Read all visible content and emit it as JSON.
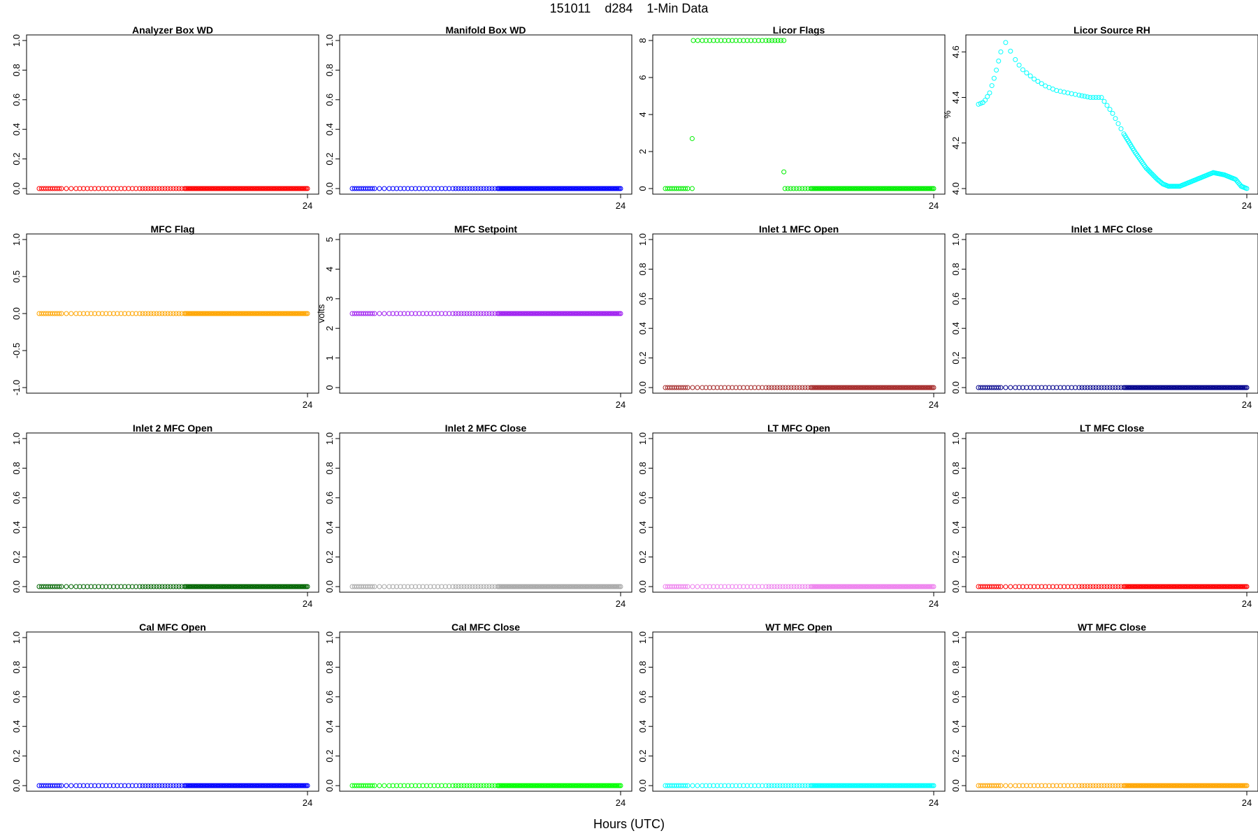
{
  "figure": {
    "title": "151011    d284    1-Min Data",
    "xlabel": "Hours (UTC)"
  },
  "chart_data": [
    {
      "type": "scatter",
      "title": "Analyzer Box WD",
      "ylabel": "",
      "color": "#ff0000",
      "ylim": [
        0,
        1
      ],
      "yticks": [
        "0.0",
        "0.2",
        "0.4",
        "0.6",
        "0.8",
        "1.0"
      ],
      "xlim": [
        0,
        24
      ],
      "xticks": [
        "24"
      ],
      "series": [
        {
          "x": [
            0,
            24
          ],
          "y": [
            0,
            0
          ],
          "pattern": "constant"
        }
      ]
    },
    {
      "type": "scatter",
      "title": "Manifold Box WD",
      "ylabel": "",
      "color": "#0000ff",
      "ylim": [
        0,
        1
      ],
      "yticks": [
        "0.0",
        "0.2",
        "0.4",
        "0.6",
        "0.8",
        "1.0"
      ],
      "xlim": [
        0,
        24
      ],
      "xticks": [
        "24"
      ],
      "series": [
        {
          "x": [
            0,
            24
          ],
          "y": [
            0,
            0
          ],
          "pattern": "constant"
        }
      ]
    },
    {
      "type": "scatter",
      "title": "Licor Flags",
      "ylabel": "",
      "color": "#00ee00",
      "ylim": [
        0,
        8
      ],
      "yticks": [
        "0",
        "2",
        "4",
        "6",
        "8"
      ],
      "xlim": [
        0,
        24
      ],
      "xticks": [
        "24"
      ],
      "series": [
        {
          "x": [
            0,
            2.4,
            2.5,
            10.6,
            10.7,
            24
          ],
          "y": [
            0,
            0,
            8,
            8,
            0,
            0
          ],
          "pattern": "steps"
        },
        {
          "x": [
            2.4,
            10.6
          ],
          "y": [
            2.7,
            0.9
          ],
          "pattern": "points"
        }
      ]
    },
    {
      "type": "scatter",
      "title": "Licor Source RH",
      "ylabel": "%",
      "color": "#00ffff",
      "ylim": [
        4,
        4.65
      ],
      "yticks": [
        "4.0",
        "4.2",
        "4.4",
        "4.6"
      ],
      "xlim": [
        0,
        24
      ],
      "xticks": [
        "24"
      ],
      "series": [
        {
          "x": [
            0,
            0.5,
            1,
            1.5,
            2,
            2.3,
            2.6,
            3,
            3.5,
            4,
            5,
            6,
            7,
            8,
            9,
            10,
            10.5,
            11,
            12,
            13,
            14,
            15,
            16,
            16.5,
            17,
            18,
            19,
            20,
            20.5,
            21,
            22,
            23,
            23.5,
            24
          ],
          "y": [
            4.37,
            4.38,
            4.42,
            4.5,
            4.6,
            4.65,
            4.63,
            4.59,
            4.55,
            4.52,
            4.48,
            4.45,
            4.43,
            4.42,
            4.41,
            4.4,
            4.4,
            4.4,
            4.33,
            4.24,
            4.16,
            4.09,
            4.04,
            4.02,
            4.01,
            4.01,
            4.03,
            4.05,
            4.06,
            4.07,
            4.06,
            4.04,
            4.01,
            4
          ]
        }
      ]
    },
    {
      "type": "scatter",
      "title": "MFC Flag",
      "ylabel": "",
      "color": "#ffa500",
      "ylim": [
        -1,
        1
      ],
      "yticks": [
        "-1.0",
        "-0.5",
        "0.0",
        "0.5",
        "1.0"
      ],
      "xlim": [
        0,
        24
      ],
      "xticks": [
        "24"
      ],
      "series": [
        {
          "x": [
            0,
            24
          ],
          "y": [
            0,
            0
          ],
          "pattern": "constant"
        }
      ]
    },
    {
      "type": "scatter",
      "title": "MFC Setpoint",
      "ylabel": "volts",
      "color": "#a020f0",
      "ylim": [
        0,
        5
      ],
      "yticks": [
        "0",
        "1",
        "2",
        "3",
        "4",
        "5"
      ],
      "xlim": [
        0,
        24
      ],
      "xticks": [
        "24"
      ],
      "series": [
        {
          "x": [
            0,
            24
          ],
          "y": [
            2.5,
            2.5
          ],
          "pattern": "constant"
        }
      ]
    },
    {
      "type": "scatter",
      "title": "Inlet 1 MFC Open",
      "ylabel": "",
      "color": "#a52a2a",
      "ylim": [
        0,
        1
      ],
      "yticks": [
        "0.0",
        "0.2",
        "0.4",
        "0.6",
        "0.8",
        "1.0"
      ],
      "xlim": [
        0,
        24
      ],
      "xticks": [
        "24"
      ],
      "series": [
        {
          "x": [
            0,
            24
          ],
          "y": [
            0,
            0
          ],
          "pattern": "constant"
        }
      ]
    },
    {
      "type": "scatter",
      "title": "Inlet 1 MFC Close",
      "ylabel": "",
      "color": "#00008b",
      "ylim": [
        0,
        1
      ],
      "yticks": [
        "0.0",
        "0.2",
        "0.4",
        "0.6",
        "0.8",
        "1.0"
      ],
      "xlim": [
        0,
        24
      ],
      "xticks": [
        "24"
      ],
      "series": [
        {
          "x": [
            0,
            24
          ],
          "y": [
            0,
            0
          ],
          "pattern": "constant"
        }
      ]
    },
    {
      "type": "scatter",
      "title": "Inlet 2 MFC Open",
      "ylabel": "",
      "color": "#006400",
      "ylim": [
        0,
        1
      ],
      "yticks": [
        "0.0",
        "0.2",
        "0.4",
        "0.6",
        "0.8",
        "1.0"
      ],
      "xlim": [
        0,
        24
      ],
      "xticks": [
        "24"
      ],
      "series": [
        {
          "x": [
            0,
            24
          ],
          "y": [
            0,
            0
          ],
          "pattern": "constant"
        }
      ]
    },
    {
      "type": "scatter",
      "title": "Inlet 2 MFC Close",
      "ylabel": "",
      "color": "#a9a9a9",
      "ylim": [
        0,
        1
      ],
      "yticks": [
        "0.0",
        "0.2",
        "0.4",
        "0.6",
        "0.8",
        "1.0"
      ],
      "xlim": [
        0,
        24
      ],
      "xticks": [
        "24"
      ],
      "series": [
        {
          "x": [
            0,
            24
          ],
          "y": [
            0,
            0
          ],
          "pattern": "constant"
        }
      ]
    },
    {
      "type": "scatter",
      "title": "LT MFC Open",
      "ylabel": "",
      "color": "#ee82ee",
      "ylim": [
        0,
        1
      ],
      "yticks": [
        "0.0",
        "0.2",
        "0.4",
        "0.6",
        "0.8",
        "1.0"
      ],
      "xlim": [
        0,
        24
      ],
      "xticks": [
        "24"
      ],
      "series": [
        {
          "x": [
            0,
            24
          ],
          "y": [
            0,
            0
          ],
          "pattern": "constant"
        }
      ]
    },
    {
      "type": "scatter",
      "title": "LT MFC Close",
      "ylabel": "",
      "color": "#ff0000",
      "ylim": [
        0,
        1
      ],
      "yticks": [
        "0.0",
        "0.2",
        "0.4",
        "0.6",
        "0.8",
        "1.0"
      ],
      "xlim": [
        0,
        24
      ],
      "xticks": [
        "24"
      ],
      "series": [
        {
          "x": [
            0,
            24
          ],
          "y": [
            0,
            0
          ],
          "pattern": "constant"
        }
      ]
    },
    {
      "type": "scatter",
      "title": "Cal MFC Open",
      "ylabel": "",
      "color": "#0000ff",
      "ylim": [
        0,
        1
      ],
      "yticks": [
        "0.0",
        "0.2",
        "0.4",
        "0.6",
        "0.8",
        "1.0"
      ],
      "xlim": [
        0,
        24
      ],
      "xticks": [
        "24"
      ],
      "series": [
        {
          "x": [
            0,
            24
          ],
          "y": [
            0,
            0
          ],
          "pattern": "constant"
        }
      ]
    },
    {
      "type": "scatter",
      "title": "Cal MFC Close",
      "ylabel": "",
      "color": "#00ff00",
      "ylim": [
        0,
        1
      ],
      "yticks": [
        "0.0",
        "0.2",
        "0.4",
        "0.6",
        "0.8",
        "1.0"
      ],
      "xlim": [
        0,
        24
      ],
      "xticks": [
        "24"
      ],
      "series": [
        {
          "x": [
            0,
            24
          ],
          "y": [
            0,
            0
          ],
          "pattern": "constant"
        }
      ]
    },
    {
      "type": "scatter",
      "title": "WT MFC Open",
      "ylabel": "",
      "color": "#00ffff",
      "ylim": [
        0,
        1
      ],
      "yticks": [
        "0.0",
        "0.2",
        "0.4",
        "0.6",
        "0.8",
        "1.0"
      ],
      "xlim": [
        0,
        24
      ],
      "xticks": [
        "24"
      ],
      "series": [
        {
          "x": [
            0,
            24
          ],
          "y": [
            0,
            0
          ],
          "pattern": "constant"
        }
      ]
    },
    {
      "type": "scatter",
      "title": "WT MFC Close",
      "ylabel": "",
      "color": "#ffa500",
      "ylim": [
        0,
        1
      ],
      "yticks": [
        "0.0",
        "0.2",
        "0.4",
        "0.6",
        "0.8",
        "1.0"
      ],
      "xlim": [
        0,
        24
      ],
      "xticks": [
        "24"
      ],
      "series": [
        {
          "x": [
            0,
            24
          ],
          "y": [
            0,
            0
          ],
          "pattern": "constant"
        }
      ]
    }
  ]
}
